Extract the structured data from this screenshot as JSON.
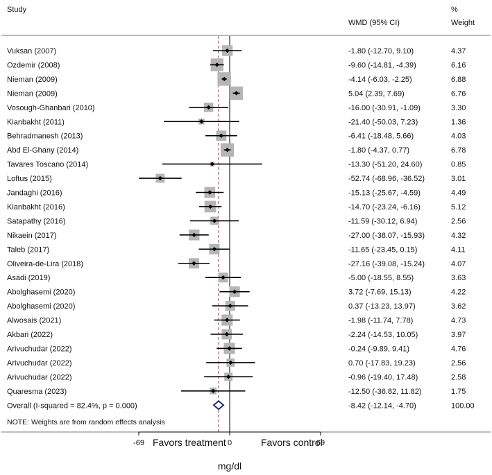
{
  "chart_data": {
    "type": "forest",
    "xlabel": "mg/dl",
    "xlim": [
      -69,
      69
    ],
    "ticks": [
      "-69",
      "0",
      "69"
    ],
    "reference_line": 0,
    "overall_line": -8.42,
    "headers": {
      "study": "Study",
      "ci_header": "WMD (95% CI)",
      "weight_line1": "%",
      "weight_line2": "Weight"
    },
    "favors_left": "Favors treatment",
    "favors_right": "Favors control",
    "note": "NOTE: Weights are from random effects analysis",
    "studies": [
      {
        "name": "Vuksan (2007)",
        "wmd": -1.8,
        "lo": -12.7,
        "hi": 9.1,
        "ci": "-1.80 (-12.70, 9.10)",
        "weight": "4.37"
      },
      {
        "name": "Ozdemir (2008)",
        "wmd": -9.6,
        "lo": -14.81,
        "hi": -4.39,
        "ci": "-9.60 (-14.81, -4.39)",
        "weight": "6.16"
      },
      {
        "name": "Nieman (2009)",
        "wmd": -4.14,
        "lo": -6.03,
        "hi": -2.25,
        "ci": "-4.14 (-6.03, -2.25)",
        "weight": "6.88"
      },
      {
        "name": "Nieman (2009)",
        "wmd": 5.04,
        "lo": 2.39,
        "hi": 7.69,
        "ci": "5.04 (2.39, 7.69)",
        "weight": "6.76"
      },
      {
        "name": "Vosough-Ghanbari (2010)",
        "wmd": -16.0,
        "lo": -30.91,
        "hi": -1.09,
        "ci": "-16.00 (-30.91, -1.09)",
        "weight": "3.30"
      },
      {
        "name": "Kianbakht (2011)",
        "wmd": -21.4,
        "lo": -50.03,
        "hi": 7.23,
        "ci": "-21.40 (-50.03, 7.23)",
        "weight": "1.36"
      },
      {
        "name": "Behradmanesh (2013)",
        "wmd": -6.41,
        "lo": -18.48,
        "hi": 5.66,
        "ci": "-6.41 (-18.48, 5.66)",
        "weight": "4.03"
      },
      {
        "name": "Abd El-Ghany (2014)",
        "wmd": -1.8,
        "lo": -4.37,
        "hi": 0.77,
        "ci": "-1.80 (-4.37, 0.77)",
        "weight": "6.78"
      },
      {
        "name": "Tavares Toscano (2014)",
        "wmd": -13.3,
        "lo": -51.2,
        "hi": 24.6,
        "ci": "-13.30 (-51.20, 24.60)",
        "weight": "0.85"
      },
      {
        "name": "Loftus (2015)",
        "wmd": -52.74,
        "lo": -68.96,
        "hi": -36.52,
        "ci": "-52.74 (-68.96, -36.52)",
        "weight": "3.01"
      },
      {
        "name": "Jandaghi (2016)",
        "wmd": -15.13,
        "lo": -25.67,
        "hi": -4.59,
        "ci": "-15.13 (-25.67, -4.59)",
        "weight": "4.49"
      },
      {
        "name": "Kianbakht (2016)",
        "wmd": -14.7,
        "lo": -23.24,
        "hi": -6.16,
        "ci": "-14.70 (-23.24, -6.16)",
        "weight": "5.12"
      },
      {
        "name": "Satapathy (2016)",
        "wmd": -11.59,
        "lo": -30.12,
        "hi": 6.94,
        "ci": "-11.59 (-30.12, 6.94)",
        "weight": "2.56"
      },
      {
        "name": "Nikaein (2017)",
        "wmd": -27.0,
        "lo": -38.07,
        "hi": -15.93,
        "ci": "-27.00 (-38.07, -15.93)",
        "weight": "4.32"
      },
      {
        "name": "Taleb (2017)",
        "wmd": -11.65,
        "lo": -23.45,
        "hi": 0.15,
        "ci": "-11.65 (-23.45, 0.15)",
        "weight": "4.11"
      },
      {
        "name": "Oliveira-de-Lira (2018)",
        "wmd": -27.16,
        "lo": -39.08,
        "hi": -15.24,
        "ci": "-27.16 (-39.08, -15.24)",
        "weight": "4.07"
      },
      {
        "name": "Asadi (2019)",
        "wmd": -5.0,
        "lo": -18.55,
        "hi": 8.55,
        "ci": "-5.00 (-18.55, 8.55)",
        "weight": "3.63"
      },
      {
        "name": "Abolghasemi (2020)",
        "wmd": 3.72,
        "lo": -7.69,
        "hi": 15.13,
        "ci": "3.72 (-7.69, 15.13)",
        "weight": "4.22"
      },
      {
        "name": "Abolghasemi (2020)",
        "wmd": 0.37,
        "lo": -13.23,
        "hi": 13.97,
        "ci": "0.37 (-13.23, 13.97)",
        "weight": "3.62"
      },
      {
        "name": "Alwosais (2021)",
        "wmd": -1.98,
        "lo": -11.74,
        "hi": 7.78,
        "ci": "-1.98 (-11.74, 7.78)",
        "weight": "4.73"
      },
      {
        "name": "Akbari (2022)",
        "wmd": -2.24,
        "lo": -14.53,
        "hi": 10.05,
        "ci": "-2.24 (-14.53, 10.05)",
        "weight": "3.97"
      },
      {
        "name": "Arivuchudar (2022)",
        "wmd": -0.24,
        "lo": -9.89,
        "hi": 9.41,
        "ci": "-0.24 (-9.89, 9.41)",
        "weight": "4.76"
      },
      {
        "name": "Arivuchudar (2022)",
        "wmd": 0.7,
        "lo": -17.83,
        "hi": 19.23,
        "ci": "0.70 (-17.83, 19.23)",
        "weight": "2.56"
      },
      {
        "name": "Arivuchudar (2022)",
        "wmd": -0.96,
        "lo": -19.4,
        "hi": 17.48,
        "ci": "-0.96 (-19.40, 17.48)",
        "weight": "2.58"
      },
      {
        "name": "Quaresma (2023)",
        "wmd": -12.5,
        "lo": -36.82,
        "hi": 11.82,
        "ci": "-12.50 (-36.82, 11.82)",
        "weight": "1.75"
      }
    ],
    "overall": {
      "label": "Overall  (I-squared = 82.4%, p = 0.000)",
      "wmd": -8.42,
      "lo": -12.14,
      "hi": -4.7,
      "ci": "-8.42 (-12.14, -4.70)",
      "weight": "100.00"
    },
    "colors": {
      "box": "#b5b5b5",
      "line": "#000000",
      "overall_line": "#b03040",
      "diamond": "#1f2a78",
      "rule": "#777777"
    }
  }
}
